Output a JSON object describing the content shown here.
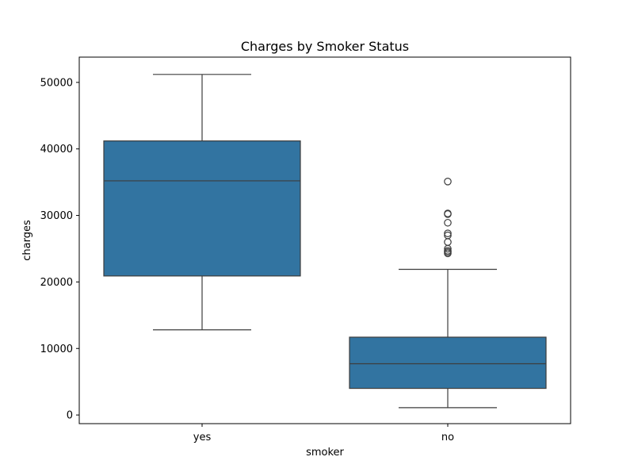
{
  "chart_data": {
    "type": "box",
    "title": "Charges by Smoker Status",
    "xlabel": "smoker",
    "ylabel": "charges",
    "categories": [
      "yes",
      "no"
    ],
    "ylim": [
      -1300,
      53800
    ],
    "yticks": [
      0,
      10000,
      20000,
      30000,
      40000,
      50000
    ],
    "ytick_labels": [
      "0",
      "10000",
      "20000",
      "30000",
      "40000",
      "50000"
    ],
    "grid": false,
    "legend": "none",
    "box_color": "#3274a1",
    "line_color": "#3d3d3d",
    "boxes": [
      {
        "category": "yes",
        "whisker_low": 12800,
        "q1": 20900,
        "median": 35200,
        "q3": 41200,
        "whisker_high": 51200,
        "outliers": []
      },
      {
        "category": "no",
        "whisker_low": 1100,
        "q1": 4000,
        "median": 7700,
        "q3": 11700,
        "whisker_high": 21900,
        "outliers": [
          24300,
          24500,
          24700,
          25000,
          26000,
          27000,
          27300,
          28900,
          30200,
          30300,
          35100
        ]
      }
    ]
  }
}
